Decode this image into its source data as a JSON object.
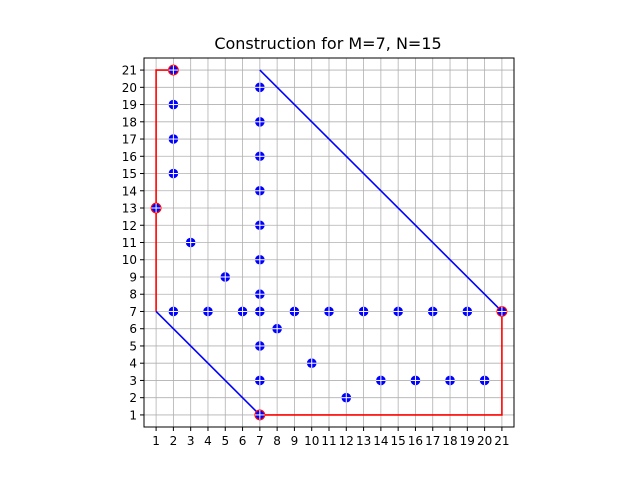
{
  "chart_data": {
    "type": "scatter",
    "title": "Construction for M=7, N=15",
    "xlabel": "",
    "ylabel": "",
    "xlim": [
      0.3,
      21.7
    ],
    "ylim": [
      0.3,
      21.7
    ],
    "xticks": [
      "1",
      "2",
      "3",
      "4",
      "5",
      "6",
      "7",
      "8",
      "9",
      "10",
      "11",
      "12",
      "13",
      "14",
      "15",
      "16",
      "17",
      "18",
      "19",
      "20",
      "21"
    ],
    "yticks": [
      "1",
      "2",
      "3",
      "4",
      "5",
      "6",
      "7",
      "8",
      "9",
      "10",
      "11",
      "12",
      "13",
      "14",
      "15",
      "16",
      "17",
      "18",
      "19",
      "20",
      "21"
    ],
    "grid": true,
    "colors": {
      "points": "#0000ff",
      "highlight_points": "#ff0000",
      "red_path": "#ff0000",
      "blue_path": "#0000ff",
      "grid": "#b0b0b0"
    },
    "lines": [
      {
        "color": "red",
        "points": [
          [
            7,
            1
          ],
          [
            21,
            1
          ],
          [
            21,
            7
          ]
        ]
      },
      {
        "color": "red",
        "points": [
          [
            2,
            21
          ],
          [
            1,
            21
          ],
          [
            1,
            7
          ]
        ]
      },
      {
        "color": "blue",
        "points": [
          [
            7,
            21
          ],
          [
            21,
            7
          ]
        ]
      },
      {
        "color": "blue",
        "points": [
          [
            1,
            7
          ],
          [
            7,
            1
          ]
        ]
      }
    ],
    "points": [
      [
        2,
        21
      ],
      [
        2,
        19
      ],
      [
        2,
        17
      ],
      [
        2,
        15
      ],
      [
        1,
        13
      ],
      [
        3,
        11
      ],
      [
        5,
        9
      ],
      [
        2,
        7
      ],
      [
        4,
        7
      ],
      [
        6,
        7
      ],
      [
        7,
        20
      ],
      [
        7,
        18
      ],
      [
        7,
        16
      ],
      [
        7,
        14
      ],
      [
        7,
        12
      ],
      [
        7,
        10
      ],
      [
        7,
        8
      ],
      [
        7,
        7
      ],
      [
        7,
        5
      ],
      [
        7,
        3
      ],
      [
        7,
        1
      ],
      [
        8,
        6
      ],
      [
        9,
        7
      ],
      [
        10,
        4
      ],
      [
        11,
        7
      ],
      [
        12,
        2
      ],
      [
        13,
        7
      ],
      [
        14,
        3
      ],
      [
        15,
        7
      ],
      [
        16,
        3
      ],
      [
        17,
        7
      ],
      [
        18,
        3
      ],
      [
        19,
        7
      ],
      [
        20,
        3
      ],
      [
        21,
        7
      ]
    ],
    "highlight_points": [
      [
        2,
        21
      ],
      [
        1,
        13
      ],
      [
        7,
        1
      ],
      [
        21,
        7
      ]
    ]
  }
}
